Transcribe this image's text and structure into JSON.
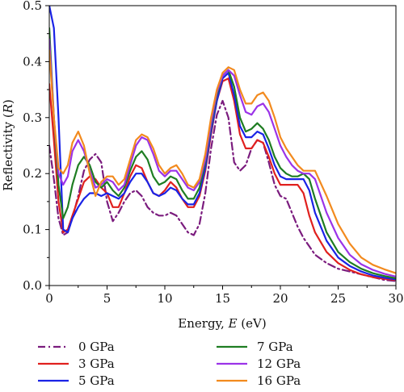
{
  "chart_data": {
    "type": "line",
    "xlabel": {
      "prefix": "Energy, ",
      "var": "E",
      "suffix": " (eV)"
    },
    "ylabel": {
      "prefix": "Reflectivity (",
      "var": "R",
      "suffix": ")"
    },
    "xlim": [
      0,
      30
    ],
    "ylim": [
      0,
      0.5
    ],
    "xticks": [
      0,
      5,
      10,
      15,
      20,
      25,
      30
    ],
    "yticks": [
      0.0,
      0.1,
      0.2,
      0.3,
      0.4,
      0.5
    ],
    "ytick_labels": [
      "0.0",
      "0.1",
      "0.2",
      "0.3",
      "0.4",
      "0.5"
    ],
    "grid": false,
    "legend_position": "bottom",
    "series": [
      {
        "name": "0 GPa",
        "color": "#7B1C7E",
        "dash": "dashdot",
        "x": [
          0,
          0.4,
          0.8,
          1.2,
          1.6,
          2.0,
          2.5,
          3.0,
          3.5,
          4.0,
          4.5,
          5.0,
          5.5,
          6.0,
          6.5,
          7.0,
          7.5,
          8.0,
          8.5,
          9.0,
          9.5,
          10.0,
          10.5,
          11.0,
          11.5,
          12.0,
          12.5,
          13.0,
          13.5,
          14.0,
          14.5,
          15.0,
          15.5,
          16.0,
          16.5,
          17.0,
          17.5,
          18.0,
          18.5,
          19.0,
          19.5,
          20.0,
          20.5,
          21.0,
          21.5,
          22.0,
          22.5,
          23.0,
          24.0,
          25.0,
          26.0,
          27.0,
          28.0,
          29.0,
          30.0
        ],
        "y": [
          0.25,
          0.19,
          0.12,
          0.09,
          0.095,
          0.12,
          0.16,
          0.205,
          0.225,
          0.235,
          0.22,
          0.15,
          0.115,
          0.13,
          0.15,
          0.165,
          0.17,
          0.16,
          0.14,
          0.13,
          0.125,
          0.125,
          0.13,
          0.125,
          0.11,
          0.095,
          0.09,
          0.11,
          0.165,
          0.245,
          0.305,
          0.33,
          0.3,
          0.22,
          0.205,
          0.215,
          0.245,
          0.26,
          0.255,
          0.22,
          0.18,
          0.16,
          0.155,
          0.13,
          0.105,
          0.085,
          0.07,
          0.055,
          0.04,
          0.03,
          0.025,
          0.02,
          0.015,
          0.01,
          0.008
        ]
      },
      {
        "name": "3 GPa",
        "color": "#E0201E",
        "dash": "solid",
        "x": [
          0,
          0.4,
          0.8,
          1.2,
          1.6,
          2.0,
          2.5,
          3.0,
          3.5,
          4.0,
          4.5,
          5.0,
          5.5,
          6.0,
          6.5,
          7.0,
          7.5,
          8.0,
          8.5,
          9.0,
          9.5,
          10.0,
          10.5,
          11.0,
          11.5,
          12.0,
          12.5,
          13.0,
          13.5,
          14.0,
          14.5,
          15.0,
          15.5,
          16.0,
          16.5,
          17.0,
          17.5,
          18.0,
          18.5,
          19.0,
          19.5,
          20.0,
          20.5,
          21.0,
          21.5,
          22.0,
          22.5,
          23.0,
          24.0,
          25.0,
          26.0,
          27.0,
          28.0,
          29.0,
          30.0
        ],
        "y": [
          0.36,
          0.26,
          0.15,
          0.095,
          0.1,
          0.125,
          0.155,
          0.185,
          0.195,
          0.19,
          0.175,
          0.165,
          0.14,
          0.14,
          0.165,
          0.195,
          0.215,
          0.21,
          0.185,
          0.165,
          0.16,
          0.17,
          0.185,
          0.175,
          0.155,
          0.14,
          0.14,
          0.16,
          0.205,
          0.27,
          0.33,
          0.365,
          0.37,
          0.33,
          0.27,
          0.245,
          0.245,
          0.26,
          0.255,
          0.23,
          0.2,
          0.18,
          0.18,
          0.18,
          0.18,
          0.165,
          0.125,
          0.095,
          0.06,
          0.04,
          0.028,
          0.02,
          0.015,
          0.012,
          0.01
        ]
      },
      {
        "name": "5 GPa",
        "color": "#1A23E6",
        "dash": "solid",
        "x": [
          0,
          0.4,
          0.8,
          1.2,
          1.6,
          2.0,
          2.5,
          3.0,
          3.5,
          4.0,
          4.5,
          5.0,
          5.5,
          6.0,
          6.5,
          7.0,
          7.5,
          8.0,
          8.5,
          9.0,
          9.5,
          10.0,
          10.5,
          11.0,
          11.5,
          12.0,
          12.5,
          13.0,
          13.5,
          14.0,
          14.5,
          15.0,
          15.5,
          16.0,
          16.5,
          17.0,
          17.5,
          18.0,
          18.5,
          19.0,
          19.5,
          20.0,
          20.5,
          21.0,
          21.5,
          22.0,
          22.5,
          23.0,
          24.0,
          25.0,
          26.0,
          27.0,
          28.0,
          29.0,
          30.0
        ],
        "y": [
          0.5,
          0.46,
          0.3,
          0.1,
          0.095,
          0.12,
          0.14,
          0.155,
          0.165,
          0.165,
          0.16,
          0.165,
          0.16,
          0.155,
          0.165,
          0.185,
          0.2,
          0.2,
          0.185,
          0.165,
          0.16,
          0.165,
          0.175,
          0.17,
          0.155,
          0.145,
          0.145,
          0.165,
          0.21,
          0.275,
          0.33,
          0.37,
          0.38,
          0.34,
          0.285,
          0.265,
          0.265,
          0.275,
          0.27,
          0.245,
          0.215,
          0.195,
          0.19,
          0.19,
          0.19,
          0.19,
          0.17,
          0.13,
          0.08,
          0.05,
          0.035,
          0.025,
          0.018,
          0.014,
          0.011
        ]
      },
      {
        "name": "7 GPa",
        "color": "#1E7D22",
        "dash": "solid",
        "x": [
          0,
          0.4,
          0.8,
          1.2,
          1.6,
          2.0,
          2.5,
          3.0,
          3.5,
          4.0,
          4.5,
          5.0,
          5.5,
          6.0,
          6.5,
          7.0,
          7.5,
          8.0,
          8.5,
          9.0,
          9.5,
          10.0,
          10.5,
          11.0,
          11.5,
          12.0,
          12.5,
          13.0,
          13.5,
          14.0,
          14.5,
          15.0,
          15.5,
          16.0,
          16.5,
          17.0,
          17.5,
          18.0,
          18.5,
          19.0,
          19.5,
          20.0,
          20.5,
          21.0,
          21.5,
          22.0,
          22.5,
          23.0,
          24.0,
          25.0,
          26.0,
          27.0,
          28.0,
          29.0,
          30.0
        ],
        "y": [
          0.46,
          0.3,
          0.18,
          0.12,
          0.14,
          0.18,
          0.215,
          0.23,
          0.215,
          0.185,
          0.175,
          0.185,
          0.17,
          0.16,
          0.175,
          0.205,
          0.23,
          0.24,
          0.225,
          0.195,
          0.18,
          0.185,
          0.195,
          0.19,
          0.17,
          0.155,
          0.155,
          0.175,
          0.22,
          0.285,
          0.34,
          0.375,
          0.385,
          0.355,
          0.3,
          0.275,
          0.28,
          0.29,
          0.28,
          0.26,
          0.23,
          0.21,
          0.2,
          0.195,
          0.195,
          0.2,
          0.19,
          0.155,
          0.095,
          0.06,
          0.042,
          0.03,
          0.022,
          0.017,
          0.013
        ]
      },
      {
        "name": "12 GPa",
        "color": "#9B33E8",
        "dash": "solid",
        "x": [
          0,
          0.4,
          0.8,
          1.2,
          1.6,
          2.0,
          2.5,
          3.0,
          3.5,
          4.0,
          4.5,
          5.0,
          5.5,
          6.0,
          6.5,
          7.0,
          7.5,
          8.0,
          8.5,
          9.0,
          9.5,
          10.0,
          10.5,
          11.0,
          11.5,
          12.0,
          12.5,
          13.0,
          13.5,
          14.0,
          14.5,
          15.0,
          15.5,
          16.0,
          16.5,
          17.0,
          17.5,
          18.0,
          18.5,
          19.0,
          19.5,
          20.0,
          20.5,
          21.0,
          21.5,
          22.0,
          22.5,
          23.0,
          24.0,
          25.0,
          26.0,
          27.0,
          28.0,
          29.0,
          30.0
        ],
        "y": [
          0.44,
          0.3,
          0.2,
          0.18,
          0.195,
          0.24,
          0.26,
          0.24,
          0.205,
          0.175,
          0.18,
          0.19,
          0.185,
          0.17,
          0.18,
          0.215,
          0.25,
          0.265,
          0.26,
          0.235,
          0.205,
          0.195,
          0.205,
          0.205,
          0.19,
          0.175,
          0.17,
          0.185,
          0.225,
          0.29,
          0.345,
          0.375,
          0.385,
          0.375,
          0.34,
          0.31,
          0.305,
          0.32,
          0.325,
          0.31,
          0.28,
          0.25,
          0.23,
          0.215,
          0.205,
          0.2,
          0.2,
          0.19,
          0.13,
          0.085,
          0.055,
          0.038,
          0.028,
          0.021,
          0.016
        ]
      },
      {
        "name": "16 GPa",
        "color": "#F28A1E",
        "dash": "solid",
        "x": [
          0,
          0.4,
          0.8,
          1.2,
          1.6,
          2.0,
          2.5,
          3.0,
          3.5,
          4.0,
          4.5,
          5.0,
          5.5,
          6.0,
          6.5,
          7.0,
          7.5,
          8.0,
          8.5,
          9.0,
          9.5,
          10.0,
          10.5,
          11.0,
          11.5,
          12.0,
          12.5,
          13.0,
          13.5,
          14.0,
          14.5,
          15.0,
          15.5,
          16.0,
          16.5,
          17.0,
          17.5,
          18.0,
          18.5,
          19.0,
          19.5,
          20.0,
          20.5,
          21.0,
          21.5,
          22.0,
          22.5,
          23.0,
          24.0,
          25.0,
          26.0,
          27.0,
          28.0,
          29.0,
          30.0
        ],
        "y": [
          0.42,
          0.3,
          0.21,
          0.2,
          0.215,
          0.255,
          0.275,
          0.25,
          0.2,
          0.16,
          0.185,
          0.195,
          0.195,
          0.18,
          0.19,
          0.225,
          0.26,
          0.27,
          0.265,
          0.245,
          0.215,
          0.2,
          0.21,
          0.215,
          0.2,
          0.18,
          0.175,
          0.19,
          0.235,
          0.3,
          0.35,
          0.38,
          0.39,
          0.385,
          0.35,
          0.325,
          0.325,
          0.34,
          0.345,
          0.33,
          0.3,
          0.265,
          0.245,
          0.23,
          0.215,
          0.205,
          0.205,
          0.205,
          0.16,
          0.11,
          0.075,
          0.05,
          0.037,
          0.029,
          0.022
        ]
      }
    ],
    "legend_order": [
      0,
      3,
      1,
      4,
      2,
      5
    ]
  }
}
